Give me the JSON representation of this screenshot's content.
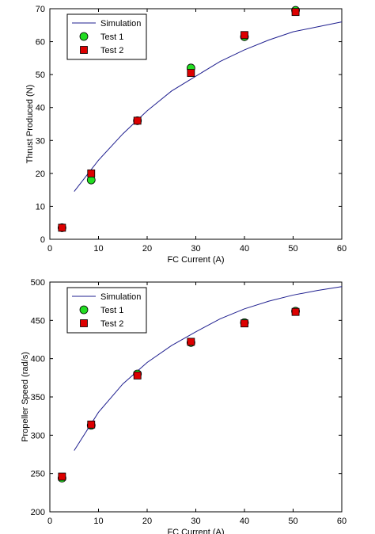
{
  "chart_data": [
    {
      "type": "scatter",
      "xlabel": "FC Current (A)",
      "ylabel": "Thrust Produced (N)",
      "xlim": [
        0,
        60
      ],
      "ylim": [
        0,
        70
      ],
      "xticks": [
        0,
        10,
        20,
        30,
        40,
        50,
        60
      ],
      "yticks": [
        0,
        10,
        20,
        30,
        40,
        50,
        60,
        70
      ],
      "legend_position": "top-left",
      "series": [
        {
          "name": "Simulation",
          "kind": "line",
          "color": "#1f1f8f",
          "x": [
            5,
            10,
            15,
            20,
            25,
            30,
            35,
            40,
            45,
            50,
            55,
            60
          ],
          "y": [
            14.5,
            24,
            32,
            39,
            45,
            49.5,
            54,
            57.5,
            60.5,
            63,
            64.5,
            66
          ]
        },
        {
          "name": "Test 1",
          "kind": "marker",
          "marker": "circle",
          "color": "#22dd22",
          "x": [
            2.5,
            8.5,
            18,
            29,
            40,
            50.5
          ],
          "y": [
            3.5,
            18,
            36,
            52,
            61.5,
            69.5
          ]
        },
        {
          "name": "Test 2",
          "kind": "marker",
          "marker": "square",
          "color": "#dd0000",
          "x": [
            2.5,
            8.5,
            18,
            29,
            40,
            50.5
          ],
          "y": [
            3.5,
            20,
            36,
            50.5,
            62,
            69
          ]
        }
      ]
    },
    {
      "type": "scatter",
      "xlabel": "FC Current (A)",
      "ylabel": "Propeller Speed (rad/s)",
      "xlim": [
        0,
        60
      ],
      "ylim": [
        200,
        500
      ],
      "xticks": [
        0,
        10,
        20,
        30,
        40,
        50,
        60
      ],
      "yticks": [
        200,
        250,
        300,
        350,
        400,
        450,
        500
      ],
      "legend_position": "top-left",
      "series": [
        {
          "name": "Simulation",
          "kind": "line",
          "color": "#1f1f8f",
          "x": [
            5,
            10,
            15,
            20,
            25,
            30,
            35,
            40,
            45,
            50,
            55,
            60
          ],
          "y": [
            280,
            330,
            367,
            395,
            417,
            435,
            452,
            465,
            475,
            483,
            489,
            494
          ]
        },
        {
          "name": "Test 1",
          "kind": "marker",
          "marker": "circle",
          "color": "#22dd22",
          "x": [
            2.5,
            8.5,
            18,
            29,
            40,
            50.5
          ],
          "y": [
            244,
            313,
            380,
            421,
            447,
            462
          ]
        },
        {
          "name": "Test 2",
          "kind": "marker",
          "marker": "square",
          "color": "#dd0000",
          "x": [
            2.5,
            8.5,
            18,
            29,
            40,
            50.5
          ],
          "y": [
            246,
            314,
            378,
            422,
            446,
            461
          ]
        }
      ]
    }
  ]
}
